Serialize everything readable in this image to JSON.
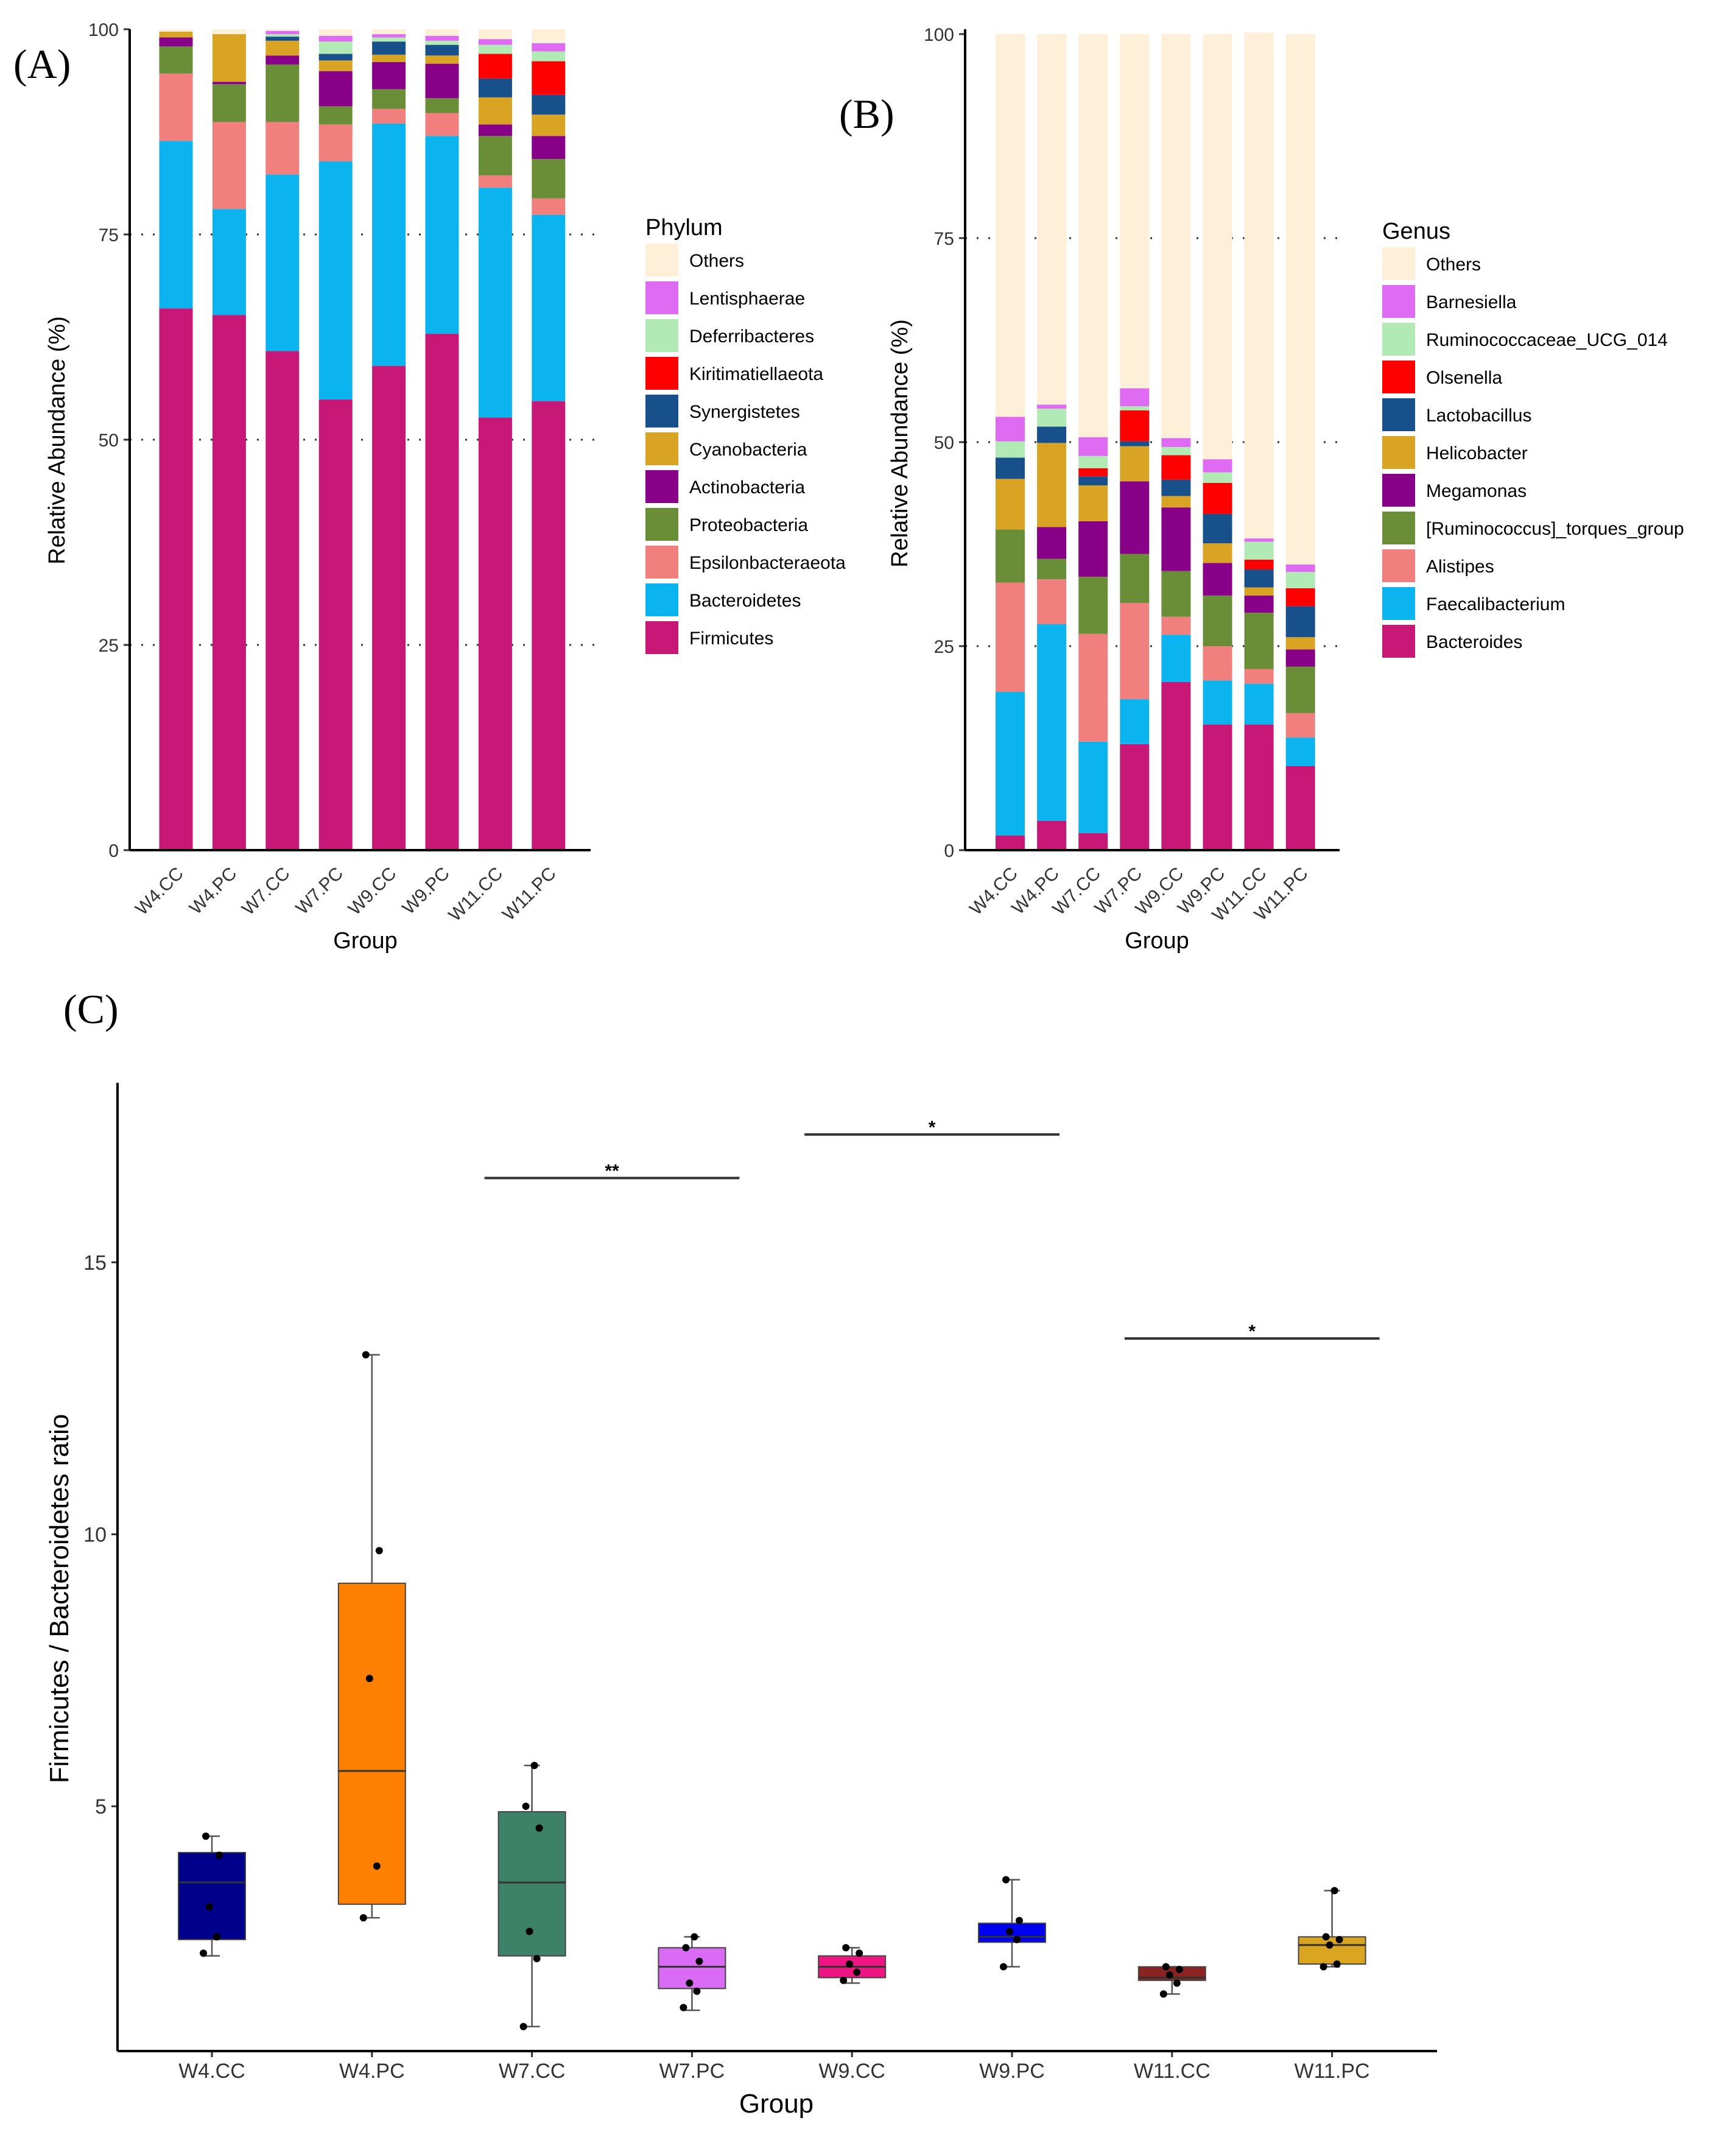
{
  "chart_data": [
    {
      "panel": "(A)",
      "type": "stacked-bar",
      "xlabel": "Group",
      "ylabel": "Relative Abundance (%)",
      "ylim": [
        0,
        100
      ],
      "yticks": [
        "0",
        "25",
        "50",
        "75",
        "100"
      ],
      "legend_title": "Phylum",
      "categories": [
        "W4.CC",
        "W4.PC",
        "W7.CC",
        "W7.PC",
        "W9.CC",
        "W9.PC",
        "W11.CC",
        "W11.PC"
      ],
      "series": [
        {
          "name": "Firmicutes",
          "color": "#C71878",
          "values": [
            66.0,
            65.2,
            60.8,
            54.9,
            59.0,
            62.9,
            52.7,
            54.7
          ]
        },
        {
          "name": "Bacteroidetes",
          "color": "#0BB4EF",
          "values": [
            20.4,
            12.9,
            21.5,
            29.0,
            29.5,
            24.1,
            28.0,
            22.7
          ]
        },
        {
          "name": "Epsilonbacteraeota",
          "color": "#F07F7D",
          "values": [
            8.2,
            10.6,
            6.4,
            4.5,
            1.8,
            2.8,
            1.5,
            2.0
          ]
        },
        {
          "name": "Proteobacteria",
          "color": "#6A8D37",
          "values": [
            3.3,
            4.6,
            7.0,
            2.2,
            2.4,
            1.8,
            4.8,
            4.8
          ]
        },
        {
          "name": "Actinobacteria",
          "color": "#880088",
          "values": [
            1.1,
            0.3,
            1.1,
            4.3,
            3.3,
            4.2,
            1.4,
            2.8
          ]
        },
        {
          "name": "Cyanobacteria",
          "color": "#D9A423",
          "values": [
            0.7,
            5.8,
            1.8,
            1.3,
            0.9,
            1.0,
            3.3,
            2.6
          ]
        },
        {
          "name": "Synergistetes",
          "color": "#17508B",
          "values": [
            0.0,
            0.0,
            0.5,
            0.8,
            1.6,
            1.3,
            2.3,
            2.4
          ]
        },
        {
          "name": "Kiritimatiellaeota",
          "color": "#FF0000",
          "values": [
            0.0,
            0.0,
            0.0,
            0.0,
            0.0,
            0.0,
            3.0,
            4.1
          ]
        },
        {
          "name": "Deferribacteres",
          "color": "#B2EAB5",
          "values": [
            0.0,
            0.0,
            0.3,
            1.5,
            0.5,
            0.5,
            1.1,
            1.2
          ]
        },
        {
          "name": "Lentisphaerae",
          "color": "#DF6BF2",
          "values": [
            0.0,
            0.0,
            0.4,
            0.7,
            0.4,
            0.6,
            0.7,
            1.0
          ]
        },
        {
          "name": "Others",
          "color": "#FDEFD8",
          "values": [
            0.3,
            0.6,
            0.2,
            0.8,
            0.6,
            0.8,
            1.2,
            1.7
          ]
        }
      ]
    },
    {
      "panel": "(B)",
      "type": "stacked-bar",
      "xlabel": "Group",
      "ylabel": "Relative Abundance (%)",
      "ylim": [
        0,
        100
      ],
      "yticks": [
        "0",
        "25",
        "50",
        "75",
        "100"
      ],
      "legend_title": "Genus",
      "categories": [
        "W4.CC",
        "W4.PC",
        "W7.CC",
        "W7.PC",
        "W9.CC",
        "W9.PC",
        "W11.CC",
        "W11.PC"
      ],
      "series": [
        {
          "name": "Bacteroides",
          "color": "#C71878",
          "values": [
            1.8,
            3.6,
            2.1,
            13.0,
            20.6,
            15.4,
            15.4,
            10.3
          ]
        },
        {
          "name": "Faecalibacterium",
          "color": "#0BB4EF",
          "values": [
            17.6,
            24.1,
            11.2,
            5.5,
            5.8,
            5.4,
            5.0,
            3.5
          ]
        },
        {
          "name": "Alistipes",
          "color": "#F07F7D",
          "values": [
            13.4,
            5.5,
            13.2,
            11.8,
            2.2,
            4.2,
            1.8,
            3.0
          ]
        },
        {
          "name": "[Ruminococcus]_torques_group",
          "color": "#6A8D37",
          "values": [
            6.5,
            2.5,
            7.0,
            6.0,
            5.6,
            6.2,
            6.9,
            5.7
          ]
        },
        {
          "name": "Megamonas",
          "color": "#880088",
          "values": [
            0.0,
            3.9,
            6.8,
            8.9,
            7.8,
            4.0,
            2.1,
            2.1
          ]
        },
        {
          "name": "Helicobacter",
          "color": "#D9A423",
          "values": [
            6.2,
            10.3,
            4.4,
            4.3,
            1.4,
            2.4,
            1.0,
            1.5
          ]
        },
        {
          "name": "Lactobacillus",
          "color": "#17508B",
          "values": [
            2.6,
            2.0,
            1.1,
            0.6,
            2.0,
            3.6,
            2.2,
            3.8
          ]
        },
        {
          "name": "Olsenella",
          "color": "#FF0000",
          "values": [
            0.0,
            0.0,
            1.0,
            3.8,
            3.0,
            3.8,
            1.2,
            2.2
          ]
        },
        {
          "name": "Ruminococcaceae_UCG_014",
          "color": "#B2EAB5",
          "values": [
            2.0,
            2.2,
            1.5,
            0.5,
            1.0,
            1.3,
            2.2,
            2.0
          ]
        },
        {
          "name": "Barnesiella",
          "color": "#DF6BF2",
          "values": [
            3.0,
            0.5,
            2.3,
            2.2,
            1.1,
            1.6,
            0.4,
            0.9
          ]
        },
        {
          "name": "Others",
          "color": "#FDEFD8",
          "values": [
            46.9,
            45.4,
            49.4,
            43.4,
            49.5,
            52.1,
            62.0,
            65.0
          ]
        }
      ]
    },
    {
      "panel": "(C)",
      "type": "box",
      "xlabel": "Group",
      "ylabel": "Firmicutes / Bacteroidetes ratio",
      "ylim": [
        0.5,
        18.3
      ],
      "yticks": [
        "5",
        "10",
        "15"
      ],
      "categories": [
        "W4.CC",
        "W4.PC",
        "W7.CC",
        "W7.PC",
        "W9.CC",
        "W9.PC",
        "W11.CC",
        "W11.PC"
      ],
      "boxes": [
        {
          "group": "W4.CC",
          "color": "#00008B",
          "min": 2.25,
          "q1": 2.55,
          "median": 3.6,
          "q3": 4.15,
          "max": 4.45,
          "points": [
            2.3,
            2.6,
            3.15,
            4.1,
            4.45
          ]
        },
        {
          "group": "W4.PC",
          "color": "#FF7F00",
          "min": 2.95,
          "q1": 3.2,
          "median": 5.65,
          "q3": 9.1,
          "max": 13.3,
          "points": [
            2.95,
            3.9,
            7.35,
            9.7,
            13.3
          ]
        },
        {
          "group": "W7.CC",
          "color": "#3D8169",
          "min": 0.95,
          "q1": 2.25,
          "median": 3.6,
          "q3": 4.9,
          "max": 5.75,
          "points": [
            0.95,
            2.2,
            2.7,
            4.6,
            5.0,
            5.75
          ]
        },
        {
          "group": "W7.PC",
          "color": "#D96BF4",
          "min": 1.25,
          "q1": 1.65,
          "median": 2.05,
          "q3": 2.4,
          "max": 2.6,
          "points": [
            1.3,
            1.6,
            1.75,
            2.15,
            2.4,
            2.6
          ]
        },
        {
          "group": "W9.CC",
          "color": "#EE1582",
          "min": 1.75,
          "q1": 1.85,
          "median": 2.05,
          "q3": 2.25,
          "max": 2.4,
          "points": [
            1.8,
            1.95,
            2.1,
            2.3,
            2.4
          ]
        },
        {
          "group": "W9.PC",
          "color": "#0000EE",
          "min": 2.05,
          "q1": 2.5,
          "median": 2.6,
          "q3": 2.85,
          "max": 3.65,
          "points": [
            2.05,
            2.55,
            2.7,
            2.9,
            3.65
          ]
        },
        {
          "group": "W11.CC",
          "color": "#8B2323",
          "min": 1.55,
          "q1": 1.8,
          "median": 1.85,
          "q3": 2.05,
          "max": 2.05,
          "points": [
            1.55,
            1.75,
            1.9,
            2.0,
            2.05
          ]
        },
        {
          "group": "W11.PC",
          "color": "#DAA520",
          "min": 2.05,
          "q1": 2.1,
          "median": 2.45,
          "q3": 2.6,
          "max": 3.45,
          "points": [
            2.05,
            2.1,
            2.45,
            2.55,
            2.6,
            3.45
          ]
        }
      ],
      "significance": [
        {
          "label": "**",
          "from": "W7.CC",
          "to": "W7.PC",
          "y": 16.55
        },
        {
          "label": "*",
          "from": "W9.CC",
          "to": "W9.PC",
          "y": 17.35
        },
        {
          "label": "*",
          "from": "W11.CC",
          "to": "W11.PC",
          "y": 13.6
        }
      ]
    }
  ]
}
